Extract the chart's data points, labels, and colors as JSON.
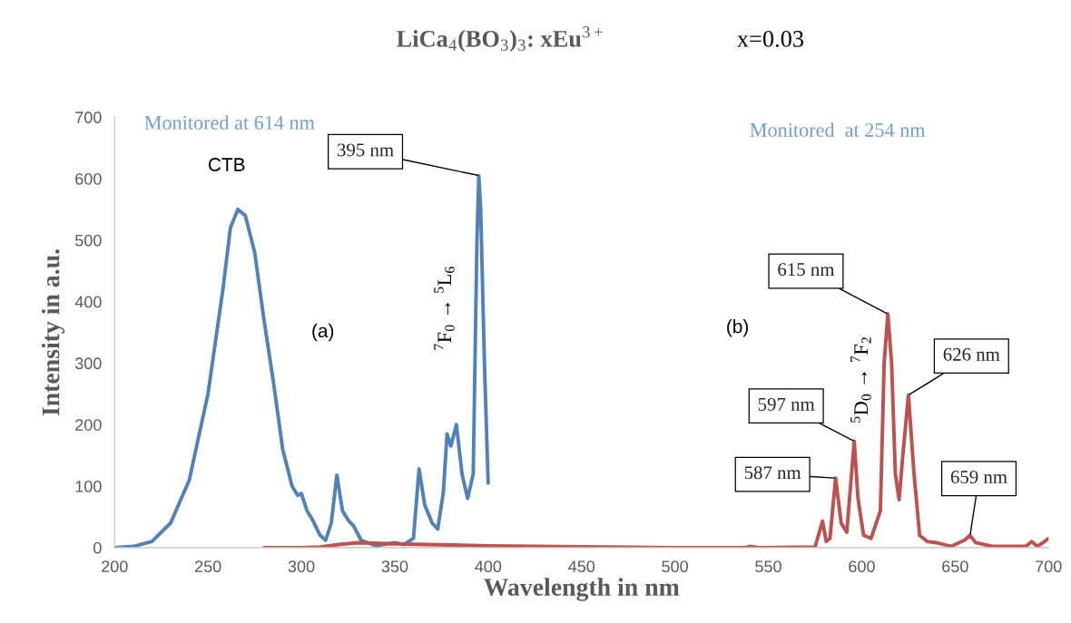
{
  "chart_data": {
    "type": "line",
    "title": "LiCa$_{4}$(BO$_{3}$)$_{3}$: xEu$^{3+}$",
    "subtitle": "x=0.03",
    "xlabel": "Wavelength in nm",
    "ylabel": "Intensity in a.u.",
    "xlim": [
      200,
      700
    ],
    "xticks": [
      200,
      250,
      300,
      350,
      400,
      450,
      500,
      550,
      600,
      650,
      700
    ],
    "ylim": [
      0,
      700
    ],
    "yticks": [
      0,
      100,
      200,
      300,
      400,
      500,
      600,
      700
    ],
    "grid": false,
    "legend": false,
    "marker": "none",
    "line_style": "solid",
    "series": [
      {
        "color": "#4f81bd",
        "x": [
          200,
          210,
          220,
          230,
          240,
          250,
          258,
          262,
          266,
          270,
          275,
          280,
          285,
          290,
          295,
          298,
          300,
          303,
          306,
          310,
          313,
          316,
          319,
          322,
          325,
          328,
          332,
          340,
          350,
          355,
          360,
          363,
          366,
          370,
          373,
          376,
          378,
          380,
          383,
          386,
          389,
          392,
          394,
          395,
          396,
          398,
          400
        ],
        "values": [
          0,
          2,
          10,
          40,
          110,
          250,
          420,
          520,
          550,
          540,
          480,
          370,
          270,
          160,
          100,
          85,
          88,
          60,
          45,
          20,
          12,
          40,
          118,
          60,
          45,
          35,
          12,
          3,
          8,
          5,
          15,
          128,
          70,
          40,
          30,
          90,
          185,
          165,
          200,
          120,
          80,
          120,
          500,
          605,
          550,
          300,
          105
        ]
      },
      {
        "color": "#c0504d",
        "x": [
          280,
          300,
          310,
          320,
          330,
          350,
          400,
          500,
          538,
          540,
          545,
          575,
          579,
          581,
          583,
          586,
          589,
          592,
          594,
          596,
          598,
          601,
          605,
          610,
          612,
          614,
          616,
          618,
          620,
          622,
          625,
          628,
          631,
          635,
          640,
          648,
          652,
          655,
          658,
          661,
          670,
          688,
          691,
          694,
          697,
          700
        ],
        "values": [
          0,
          0,
          1,
          5,
          8,
          6,
          3,
          0,
          0,
          2,
          0,
          1,
          43,
          10,
          15,
          113,
          40,
          25,
          100,
          173,
          80,
          20,
          15,
          60,
          300,
          380,
          300,
          120,
          78,
          150,
          248,
          120,
          20,
          10,
          8,
          2,
          8,
          12,
          20,
          8,
          2,
          2,
          10,
          2,
          8,
          15
        ]
      }
    ],
    "annotations": [
      {
        "text": "395 nm",
        "x": 395,
        "y": 605
      },
      {
        "text": "615 nm",
        "x": 614,
        "y": 380
      },
      {
        "text": "626 nm",
        "x": 625,
        "y": 248
      },
      {
        "text": "597 nm",
        "x": 596,
        "y": 173
      },
      {
        "text": "587 nm",
        "x": 586,
        "y": 113
      },
      {
        "text": "659 nm",
        "x": 658,
        "y": 20
      },
      "Monitored at 614 nm",
      "Monitored  at 254 nm",
      "CTB",
      "(a)",
      "(b)",
      "$^{7}$F$_{0}$ → $^{5}$L$_{6}$",
      "$^{5}$D$_{0}$ → $^{7}$F$_{2}$"
    ]
  }
}
